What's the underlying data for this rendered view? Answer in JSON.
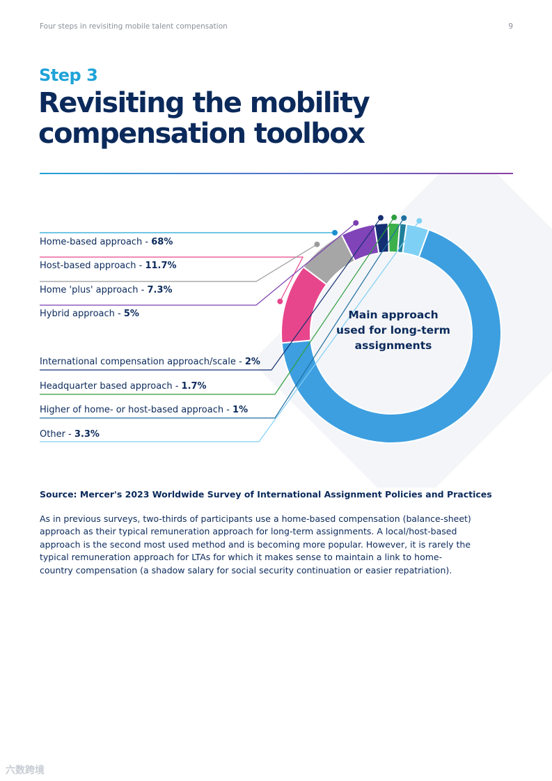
{
  "header": {
    "running_title": "Four steps in revisiting mobile talent compensation",
    "page_number": "9"
  },
  "step_label": "Step 3",
  "title_line1": "Revisiting the mobility",
  "title_line2": "compensation toolbox",
  "chart_data": {
    "type": "pie",
    "style": "donut",
    "center_label": [
      "Main approach",
      "used for long-term",
      "assignments"
    ],
    "slices": [
      {
        "label": "Home-based approach",
        "value": 68,
        "value_text": "68%",
        "color": "#3d9fe0",
        "dot": "#1b8fd0",
        "line": "#1fa3d8"
      },
      {
        "label": "Host-based approach",
        "value": 11.7,
        "value_text": "11.7%",
        "color": "#e8468c",
        "dot": "#e8468c",
        "line": "#e8468c"
      },
      {
        "label": "Home 'plus' approach",
        "value": 7.3,
        "value_text": "7.3%",
        "color": "#a6a6a6",
        "dot": "#9b9b9b",
        "line": "#9b9b9b"
      },
      {
        "label": "Hybrid approach",
        "value": 5,
        "value_text": "5%",
        "color": "#8044b8",
        "dot": "#7a3eb0",
        "line": "#7a3eb0"
      },
      {
        "label": "International compensation approach/scale",
        "value": 2,
        "value_text": "2%",
        "color": "#152f73",
        "dot": "#152f73",
        "line": "#152f73"
      },
      {
        "label": "Headquarter based  approach",
        "value": 1.7,
        "value_text": "1.7%",
        "color": "#3cb04a",
        "dot": "#2e9e3e",
        "line": "#2e9e3e"
      },
      {
        "label": "Higher of home- or host-based approach",
        "value": 1,
        "value_text": "1%",
        "color": "#1f7f9a",
        "dot": "#1f6fa0",
        "line": "#1f6fa0"
      },
      {
        "label": "Other",
        "value": 3.3,
        "value_text": "3.3%",
        "color": "#7fd0f5",
        "dot": "#7fd0f5",
        "line": "#7fd0f5"
      }
    ]
  },
  "source": "Source: Mercer's 2023 Worldwide Survey of International Assignment Policies and Practices",
  "body": "As in previous surveys, two-thirds of participants use a home-based compensation (balance-sheet) approach as their typical remuneration approach for long-term assignments. A local/host-based approach is the second most used method and is becoming more popular. However, it is rarely the typical remuneration approach for LTAs for which it makes sense to maintain a link to home-country compensation (a shadow salary for social security continuation or easier repatriation).",
  "watermark": "六数跨境"
}
